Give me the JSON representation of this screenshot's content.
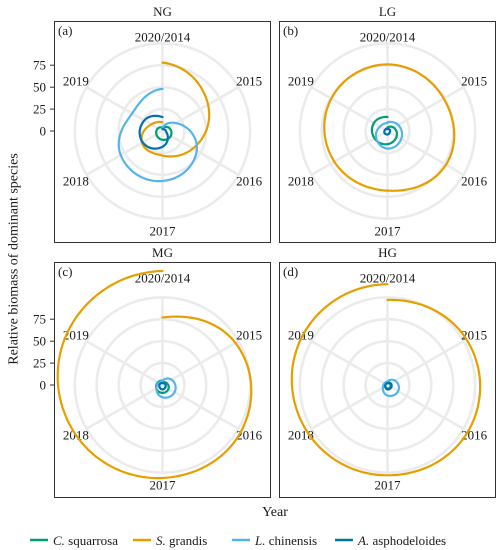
{
  "figure": {
    "ylabel": "Relative biomass of dominant species",
    "xlabel": "Year",
    "coord": "polar",
    "y_ticks": [
      0,
      25,
      50,
      75
    ],
    "ylim": [
      0,
      130
    ],
    "theta_labels": [
      "2020/2014",
      "2015",
      "2016",
      "2017",
      "2018",
      "2019"
    ],
    "grid": true,
    "legend_position": "bottom"
  },
  "chart_data": [
    {
      "type": "line",
      "title": "NG",
      "panel_label": "(a)",
      "y_tick_labels": true,
      "x": [
        2014,
        2015,
        2016,
        2017,
        2018,
        2019,
        2020
      ],
      "series": [
        {
          "name": "C. squarrosa",
          "color": "#009E73",
          "values": [
            3,
            8,
            11,
            10,
            8,
            6,
            4
          ]
        },
        {
          "name": "S. grandis",
          "color": "#E69F00",
          "values": [
            78,
            60,
            40,
            28,
            27,
            15,
            10
          ]
        },
        {
          "name": "L. chinensis",
          "color": "#56B4E9",
          "values": [
            4,
            18,
            45,
            57,
            55,
            40,
            48
          ]
        },
        {
          "name": "A. asphodeloides",
          "color": "#0072B2",
          "values": [
            2,
            3,
            6,
            18,
            26,
            24,
            16
          ]
        }
      ]
    },
    {
      "type": "line",
      "title": "LG",
      "panel_label": "(b)",
      "y_tick_labels": false,
      "x": [
        2014,
        2015,
        2016,
        2017,
        2018,
        2019,
        2020
      ],
      "series": [
        {
          "name": "C. squarrosa",
          "color": "#009E73",
          "values": [
            4,
            8,
            12,
            15,
            17,
            18,
            16
          ]
        },
        {
          "name": "S. grandis",
          "color": "#E69F00",
          "values": [
            76,
            74,
            77,
            68,
            70,
            74,
            76
          ]
        },
        {
          "name": "L. chinensis",
          "color": "#56B4E9",
          "values": [
            10,
            14,
            18,
            20,
            15,
            10,
            9
          ]
        },
        {
          "name": "A. asphodeloides",
          "color": "#0072B2",
          "values": [
            2,
            3,
            3,
            4,
            4,
            3,
            3
          ]
        }
      ]
    },
    {
      "type": "line",
      "title": "MG",
      "panel_label": "(c)",
      "y_tick_labels": true,
      "x": [
        2014,
        2015,
        2016,
        2017,
        2018,
        2019,
        2020
      ],
      "series": [
        {
          "name": "C. squarrosa",
          "color": "#009E73",
          "values": [
            3,
            5,
            8,
            9,
            8,
            6,
            5
          ]
        },
        {
          "name": "S. grandis",
          "color": "#E69F00",
          "values": [
            77,
            96,
            104,
            106,
            114,
            124,
            130
          ]
        },
        {
          "name": "L. chinensis",
          "color": "#56B4E9",
          "values": [
            5,
            12,
            16,
            14,
            8,
            5,
            4
          ]
        },
        {
          "name": "A. asphodeloides",
          "color": "#0072B2",
          "values": [
            2,
            3,
            4,
            5,
            4,
            3,
            2
          ]
        }
      ]
    },
    {
      "type": "line",
      "title": "HG",
      "panel_label": "(d)",
      "y_tick_labels": false,
      "x": [
        2014,
        2015,
        2016,
        2017,
        2018,
        2019,
        2020
      ],
      "series": [
        {
          "name": "C. squarrosa",
          "color": "#009E73",
          "values": [
            2,
            3,
            4,
            4,
            3,
            3,
            2
          ]
        },
        {
          "name": "S. grandis",
          "color": "#E69F00",
          "values": [
            97,
            104,
            106,
            103,
            106,
            112,
            115
          ]
        },
        {
          "name": "L. chinensis",
          "color": "#56B4E9",
          "values": [
            4,
            10,
            14,
            12,
            6,
            4,
            4
          ]
        },
        {
          "name": "A. asphodeloides",
          "color": "#0072B2",
          "values": [
            2,
            4,
            5,
            5,
            3,
            2,
            2
          ]
        }
      ]
    }
  ]
}
